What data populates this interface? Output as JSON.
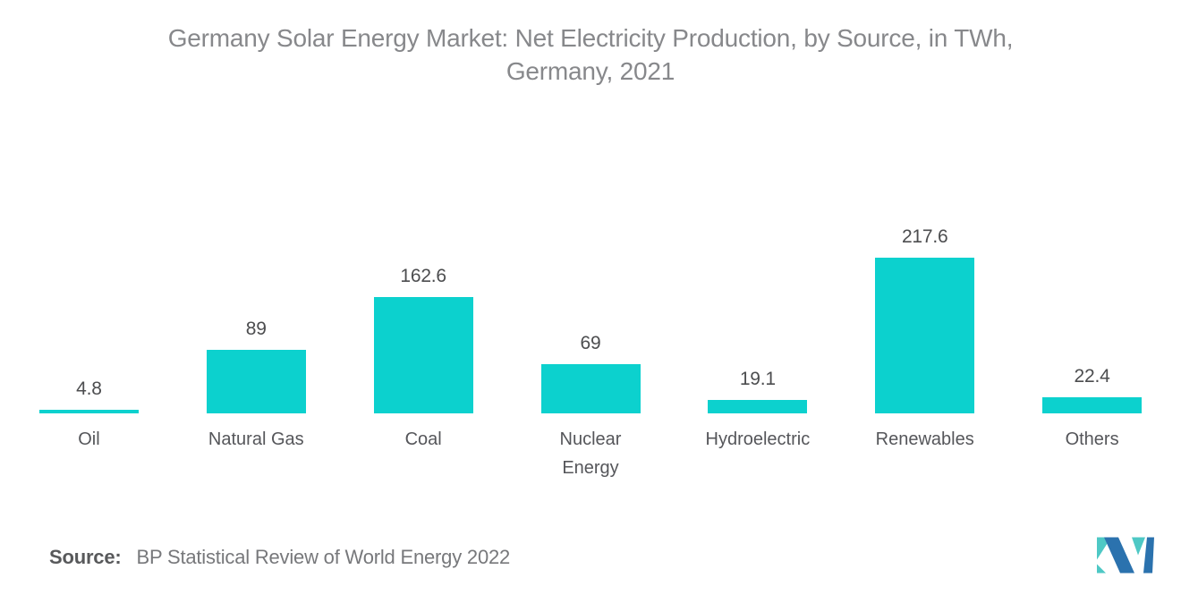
{
  "chart_data": {
    "type": "bar",
    "title": "Germany Solar Energy Market: Net Electricity Production, by Source, in TWh, Germany, 2021",
    "categories": [
      "Oil",
      "Natural Gas",
      "Coal",
      "Nuclear Energy",
      "Hydroelectric",
      "Renewables",
      "Others"
    ],
    "values": [
      4.8,
      89,
      162.6,
      69,
      19.1,
      217.6,
      22.4
    ],
    "xlabel": "",
    "ylabel": "",
    "ylim": [
      0,
      230
    ],
    "grid": false,
    "legend": false,
    "bar_value_labels_shown": true,
    "bar_color": "#0cd1ce",
    "value_label_color": "#4c4d4f",
    "category_label_color": "#55565a",
    "title_color": "#87888b"
  },
  "footer": {
    "source_label": "Source:",
    "source_text": "BP Statistical Review of World Energy 2022"
  },
  "logo": {
    "name": "Mordor Intelligence logo",
    "teal": "#4ec8c5",
    "blue": "#2b72ae"
  }
}
